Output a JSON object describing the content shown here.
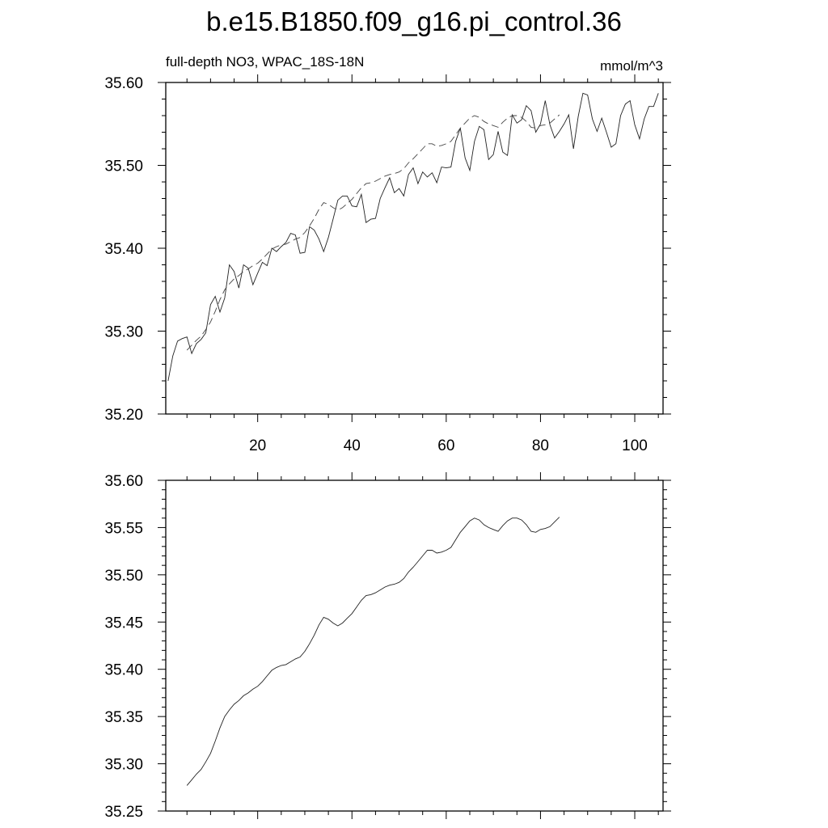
{
  "figure": {
    "title": "b.e15.B1850.f09_g16.pi_control.36"
  },
  "chart_data": [
    {
      "type": "line",
      "left_label": "full-depth NO3, WPAC_18S-18N",
      "right_label": "mmol/m^3",
      "xlim": [
        0.5,
        106
      ],
      "ylim": [
        35.2,
        35.6
      ],
      "x_ticks": [
        20,
        40,
        60,
        80,
        100
      ],
      "y_ticks": [
        "35.20",
        "35.30",
        "35.40",
        "35.50",
        "35.60"
      ],
      "series": [
        {
          "style": "solid",
          "x_start": 1,
          "values": [
            35.24,
            35.27,
            35.288,
            35.291,
            35.293,
            35.273,
            35.285,
            35.29,
            35.298,
            35.332,
            35.342,
            35.323,
            35.34,
            35.38,
            35.372,
            35.352,
            35.38,
            35.376,
            35.356,
            35.37,
            35.383,
            35.379,
            35.4,
            35.396,
            35.402,
            35.407,
            35.418,
            35.416,
            35.394,
            35.395,
            35.426,
            35.422,
            35.411,
            35.396,
            35.413,
            35.435,
            35.458,
            35.463,
            35.463,
            35.451,
            35.45,
            35.465,
            35.431,
            35.435,
            35.436,
            35.46,
            35.473,
            35.485,
            35.467,
            35.472,
            35.463,
            35.489,
            35.497,
            35.478,
            35.492,
            35.486,
            35.491,
            35.479,
            35.498,
            35.497,
            35.498,
            35.529,
            35.545,
            35.509,
            35.494,
            35.529,
            35.547,
            35.543,
            35.507,
            35.513,
            35.541,
            35.516,
            35.512,
            35.561,
            35.551,
            35.555,
            35.572,
            35.566,
            35.54,
            35.55,
            35.578,
            35.549,
            35.533,
            35.541,
            35.55,
            35.561,
            35.52,
            35.559,
            35.587,
            35.585,
            35.556,
            35.541,
            35.557,
            35.54,
            35.522,
            35.526,
            35.56,
            35.574,
            35.578,
            35.549,
            35.532,
            35.556,
            35.571,
            35.571,
            35.587
          ]
        },
        {
          "style": "dashed",
          "x_start": 5,
          "values": [
            35.277,
            35.283,
            35.289,
            35.294,
            35.302,
            35.311,
            35.324,
            35.338,
            35.35,
            35.357,
            35.363,
            35.367,
            35.372,
            35.375,
            35.379,
            35.382,
            35.387,
            35.393,
            35.399,
            35.402,
            35.404,
            35.405,
            35.408,
            35.411,
            35.413,
            35.419,
            35.427,
            35.436,
            35.447,
            35.455,
            35.453,
            35.449,
            35.446,
            35.449,
            35.454,
            35.459,
            35.466,
            35.473,
            35.478,
            35.479,
            35.481,
            35.484,
            35.487,
            35.489,
            35.49,
            35.492,
            35.496,
            35.503,
            35.508,
            35.514,
            35.52,
            35.526,
            35.526,
            35.523,
            35.524,
            35.526,
            35.529,
            35.537,
            35.545,
            35.551,
            35.557,
            35.56,
            35.558,
            35.553,
            35.55,
            35.548,
            35.546,
            35.552,
            35.557,
            35.56,
            35.56,
            35.558,
            35.553,
            35.546,
            35.545,
            35.548,
            35.549,
            35.551,
            35.556,
            35.561
          ]
        }
      ]
    },
    {
      "type": "line",
      "xlim": [
        0.5,
        106
      ],
      "ylim": [
        35.25,
        35.6
      ],
      "y_ticks": [
        "35.25",
        "35.30",
        "35.35",
        "35.40",
        "35.45",
        "35.50",
        "35.55",
        "35.60"
      ],
      "series": [
        {
          "style": "solid",
          "x_start": 5,
          "values": [
            35.277,
            35.283,
            35.289,
            35.294,
            35.302,
            35.311,
            35.324,
            35.338,
            35.35,
            35.357,
            35.363,
            35.367,
            35.372,
            35.375,
            35.379,
            35.382,
            35.387,
            35.393,
            35.399,
            35.402,
            35.404,
            35.405,
            35.408,
            35.411,
            35.413,
            35.419,
            35.427,
            35.436,
            35.447,
            35.455,
            35.453,
            35.449,
            35.446,
            35.449,
            35.454,
            35.459,
            35.466,
            35.473,
            35.478,
            35.479,
            35.481,
            35.484,
            35.487,
            35.489,
            35.49,
            35.492,
            35.496,
            35.503,
            35.508,
            35.514,
            35.52,
            35.526,
            35.526,
            35.523,
            35.524,
            35.526,
            35.529,
            35.537,
            35.545,
            35.551,
            35.557,
            35.56,
            35.558,
            35.553,
            35.55,
            35.548,
            35.546,
            35.552,
            35.557,
            35.56,
            35.56,
            35.558,
            35.553,
            35.546,
            35.545,
            35.548,
            35.549,
            35.551,
            35.556,
            35.561
          ]
        }
      ]
    }
  ]
}
